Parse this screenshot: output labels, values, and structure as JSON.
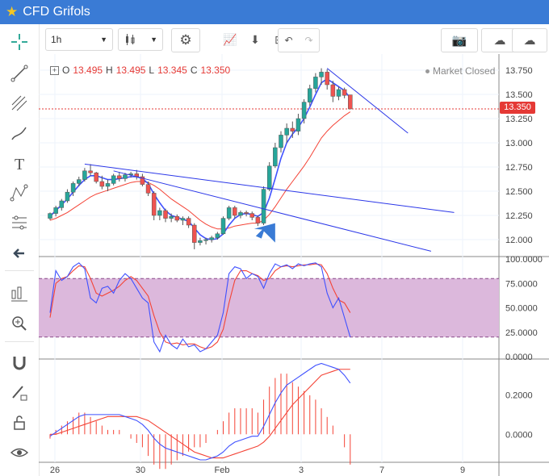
{
  "window": {
    "title": "CFD Grifols",
    "star_icon": "star-icon"
  },
  "toolbar": {
    "interval": "1h"
  },
  "legend": {
    "o_label": "O",
    "o": "13.495",
    "h_label": "H",
    "h": "13.495",
    "l_label": "L",
    "l": "13.345",
    "c_label": "C",
    "c": "13.350"
  },
  "status": {
    "market": "Market Closed"
  },
  "last_price": "13.350",
  "colors": {
    "up": "#26a69a",
    "down": "#ef5350",
    "accent": "#3a7bd5",
    "ma_fast": "#3f51ff",
    "ma_slow": "#f44336",
    "band": "#dcb8dc"
  },
  "chart_data": [
    {
      "type": "candlestick",
      "x_ticks": [
        "26",
        "30",
        "Feb",
        "3",
        "7",
        "9"
      ],
      "y_ticks": [
        "12.000",
        "12.250",
        "12.500",
        "12.750",
        "13.000",
        "13.250",
        "13.500",
        "13.750"
      ],
      "ylim": [
        11.85,
        13.85
      ],
      "last_price": 13.35,
      "candles": [
        [
          12.22,
          12.28,
          12.2,
          12.27
        ],
        [
          12.27,
          12.35,
          12.24,
          12.33
        ],
        [
          12.33,
          12.42,
          12.3,
          12.4
        ],
        [
          12.4,
          12.52,
          12.38,
          12.49
        ],
        [
          12.49,
          12.6,
          12.45,
          12.58
        ],
        [
          12.58,
          12.65,
          12.55,
          12.62
        ],
        [
          12.62,
          12.74,
          12.6,
          12.71
        ],
        [
          12.71,
          12.78,
          12.66,
          12.69
        ],
        [
          12.69,
          12.7,
          12.58,
          12.6
        ],
        [
          12.6,
          12.66,
          12.52,
          12.55
        ],
        [
          12.55,
          12.62,
          12.5,
          12.58
        ],
        [
          12.58,
          12.68,
          12.56,
          12.66
        ],
        [
          12.66,
          12.7,
          12.6,
          12.63
        ],
        [
          12.63,
          12.69,
          12.6,
          12.67
        ],
        [
          12.67,
          12.7,
          12.64,
          12.68
        ],
        [
          12.68,
          12.72,
          12.62,
          12.65
        ],
        [
          12.65,
          12.68,
          12.55,
          12.57
        ],
        [
          12.57,
          12.6,
          12.45,
          12.48
        ],
        [
          12.48,
          12.5,
          12.2,
          12.25
        ],
        [
          12.25,
          12.33,
          12.2,
          12.3
        ],
        [
          12.3,
          12.32,
          12.18,
          12.22
        ],
        [
          12.22,
          12.27,
          12.18,
          12.24
        ],
        [
          12.24,
          12.26,
          12.18,
          12.2
        ],
        [
          12.2,
          12.24,
          12.15,
          12.22
        ],
        [
          12.22,
          12.24,
          12.12,
          12.15
        ],
        [
          12.15,
          12.17,
          11.9,
          11.97
        ],
        [
          11.97,
          12.02,
          11.94,
          11.99
        ],
        [
          11.99,
          12.02,
          11.95,
          12.0
        ],
        [
          12.0,
          12.04,
          11.97,
          12.02
        ],
        [
          12.02,
          12.08,
          12.0,
          12.06
        ],
        [
          12.06,
          12.24,
          12.05,
          12.22
        ],
        [
          12.22,
          12.35,
          12.2,
          12.33
        ],
        [
          12.33,
          12.35,
          12.22,
          12.25
        ],
        [
          12.25,
          12.3,
          12.22,
          12.28
        ],
        [
          12.28,
          12.3,
          12.24,
          12.27
        ],
        [
          12.27,
          12.29,
          12.2,
          12.23
        ],
        [
          12.23,
          12.25,
          12.14,
          12.17
        ],
        [
          12.17,
          12.55,
          12.15,
          12.52
        ],
        [
          12.52,
          12.8,
          12.5,
          12.76
        ],
        [
          12.76,
          13.0,
          12.74,
          12.95
        ],
        [
          12.95,
          13.12,
          12.9,
          13.08
        ],
        [
          13.08,
          13.2,
          13.0,
          13.15
        ],
        [
          13.15,
          13.22,
          13.05,
          13.12
        ],
        [
          13.12,
          13.3,
          13.08,
          13.25
        ],
        [
          13.25,
          13.45,
          13.2,
          13.42
        ],
        [
          13.42,
          13.6,
          13.38,
          13.56
        ],
        [
          13.56,
          13.72,
          13.52,
          13.68
        ],
        [
          13.68,
          13.77,
          13.6,
          13.73
        ],
        [
          13.73,
          13.76,
          13.55,
          13.6
        ],
        [
          13.6,
          13.64,
          13.42,
          13.48
        ],
        [
          13.48,
          13.58,
          13.44,
          13.55
        ],
        [
          13.55,
          13.57,
          13.46,
          13.49
        ],
        [
          13.495,
          13.495,
          13.345,
          13.35
        ]
      ],
      "ma_fast": [
        12.24,
        12.3,
        12.36,
        12.42,
        12.49,
        12.56,
        12.62,
        12.66,
        12.66,
        12.64,
        12.62,
        12.62,
        12.63,
        12.64,
        12.65,
        12.65,
        12.63,
        12.58,
        12.47,
        12.38,
        12.3,
        12.25,
        12.23,
        12.21,
        12.19,
        12.12,
        12.05,
        12.01,
        12.0,
        12.01,
        12.06,
        12.15,
        12.22,
        12.26,
        12.27,
        12.26,
        12.24,
        12.28,
        12.43,
        12.63,
        12.84,
        13.0,
        13.09,
        13.16,
        13.25,
        13.37,
        13.5,
        13.62,
        13.66,
        13.62,
        13.58,
        13.54,
        13.46
      ],
      "ma_slow": [
        12.2,
        12.22,
        12.25,
        12.28,
        12.32,
        12.36,
        12.4,
        12.44,
        12.47,
        12.49,
        12.51,
        12.53,
        12.55,
        12.57,
        12.59,
        12.6,
        12.6,
        12.59,
        12.56,
        12.52,
        12.47,
        12.42,
        12.38,
        12.34,
        12.3,
        12.25,
        12.2,
        12.16,
        12.13,
        12.11,
        12.11,
        12.12,
        12.14,
        12.15,
        12.16,
        12.17,
        12.17,
        12.2,
        12.26,
        12.34,
        12.43,
        12.52,
        12.6,
        12.68,
        12.76,
        12.85,
        12.95,
        13.05,
        13.12,
        13.18,
        13.23,
        13.28,
        13.32
      ],
      "trendlines": [
        {
          "from": [
            6,
            12.78
          ],
          "to": [
            70,
            12.28
          ]
        },
        {
          "from": [
            11,
            12.71
          ],
          "to": [
            66,
            11.88
          ]
        },
        {
          "from": [
            48,
            13.77
          ],
          "to": [
            62,
            13.1
          ]
        }
      ]
    },
    {
      "type": "line",
      "name": "stochastic",
      "y_ticks": [
        "0.0000",
        "25.0000",
        "50.0000",
        "75.0000",
        "100.0000"
      ],
      "ylim": [
        0,
        100
      ],
      "band": [
        20,
        80
      ],
      "k": [
        45,
        88,
        78,
        82,
        92,
        96,
        90,
        60,
        55,
        70,
        72,
        65,
        78,
        85,
        80,
        70,
        60,
        55,
        15,
        5,
        22,
        12,
        8,
        18,
        10,
        12,
        5,
        8,
        15,
        22,
        45,
        85,
        92,
        90,
        80,
        85,
        82,
        70,
        85,
        95,
        92,
        94,
        90,
        95,
        93,
        95,
        96,
        92,
        65,
        50,
        60,
        40,
        20
      ],
      "d": [
        40,
        75,
        80,
        82,
        88,
        93,
        92,
        80,
        65,
        62,
        65,
        68,
        72,
        78,
        82,
        78,
        70,
        62,
        42,
        25,
        15,
        13,
        14,
        12,
        13,
        13,
        10,
        8,
        10,
        15,
        28,
        55,
        78,
        88,
        88,
        85,
        83,
        78,
        80,
        88,
        92,
        93,
        92,
        93,
        94,
        94,
        95,
        94,
        85,
        70,
        58,
        55,
        45
      ]
    },
    {
      "type": "line",
      "name": "macd",
      "y_ticks": [
        "0.0000",
        "0.2000"
      ],
      "ylim": [
        -0.13,
        0.37
      ],
      "macd": [
        -0.01,
        0.01,
        0.03,
        0.05,
        0.07,
        0.09,
        0.1,
        0.1,
        0.1,
        0.1,
        0.1,
        0.1,
        0.1,
        0.09,
        0.08,
        0.07,
        0.05,
        0.02,
        -0.02,
        -0.05,
        -0.07,
        -0.08,
        -0.09,
        -0.1,
        -0.11,
        -0.12,
        -0.13,
        -0.13,
        -0.12,
        -0.11,
        -0.09,
        -0.06,
        -0.04,
        -0.03,
        -0.02,
        -0.01,
        -0.01,
        0.04,
        0.1,
        0.16,
        0.21,
        0.25,
        0.27,
        0.29,
        0.31,
        0.33,
        0.35,
        0.36,
        0.35,
        0.34,
        0.33,
        0.3,
        0.26
      ],
      "signal": [
        0.0,
        0.0,
        0.01,
        0.02,
        0.03,
        0.04,
        0.05,
        0.06,
        0.07,
        0.08,
        0.09,
        0.09,
        0.09,
        0.09,
        0.09,
        0.09,
        0.08,
        0.07,
        0.05,
        0.03,
        0.01,
        -0.01,
        -0.03,
        -0.05,
        -0.07,
        -0.09,
        -0.1,
        -0.11,
        -0.12,
        -0.12,
        -0.12,
        -0.11,
        -0.1,
        -0.09,
        -0.08,
        -0.07,
        -0.06,
        -0.04,
        -0.01,
        0.03,
        0.07,
        0.11,
        0.15,
        0.18,
        0.21,
        0.24,
        0.27,
        0.3,
        0.31,
        0.32,
        0.33,
        0.33,
        0.33
      ]
    }
  ]
}
